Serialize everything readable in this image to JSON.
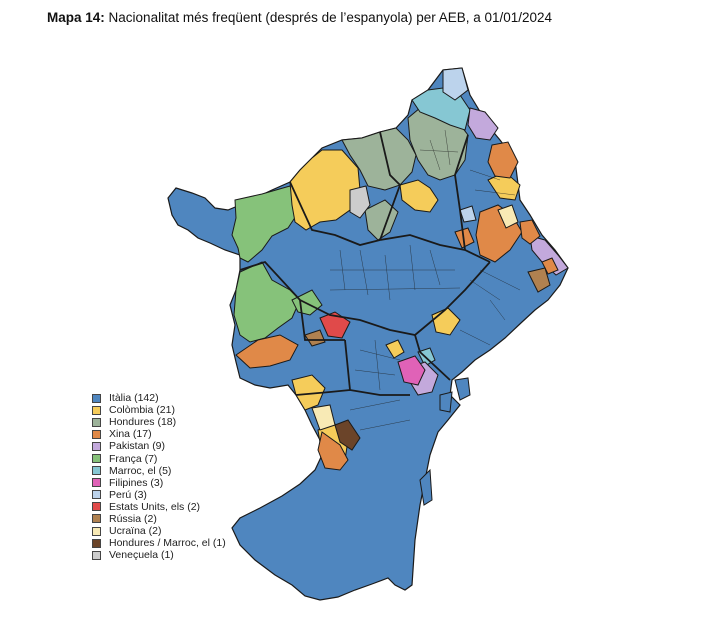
{
  "title": {
    "prefix": "Mapa 14:",
    "text": "Nacionalitat més freqüent (després de l’espanyola) per AEB, a 01/01/2024"
  },
  "colors": {
    "italia": "#4f86bf",
    "colombia": "#f5cc5a",
    "hondures": "#9db39a",
    "xina": "#e08948",
    "pakistan": "#c3a9dc",
    "franca": "#86c27a",
    "marroc": "#86c7d3",
    "filipines": "#e062b7",
    "peru": "#bcd3ec",
    "estats_units": "#e04a4a",
    "russia": "#b08150",
    "ucraina": "#f8eab5",
    "hondures_marroc": "#6b4429",
    "veneçuela": "#cccccc",
    "border": "#1a1a1a"
  },
  "legend": [
    {
      "label": "Itàlia (142)",
      "color": "#4f86bf"
    },
    {
      "label": "Colòmbia (21)",
      "color": "#f5cc5a"
    },
    {
      "label": "Hondures (18)",
      "color": "#9db39a"
    },
    {
      "label": "Xina (17)",
      "color": "#e08948"
    },
    {
      "label": "Pakistan (9)",
      "color": "#c3a9dc"
    },
    {
      "label": "França (7)",
      "color": "#86c27a"
    },
    {
      "label": "Marroc, el (5)",
      "color": "#86c7d3"
    },
    {
      "label": "Filipines (3)",
      "color": "#e062b7"
    },
    {
      "label": "Perú (3)",
      "color": "#bcd3ec"
    },
    {
      "label": "Estats Units, els (2)",
      "color": "#e04a4a"
    },
    {
      "label": "Rússia (2)",
      "color": "#b08150"
    },
    {
      "label": "Ucraïna (2)",
      "color": "#f8eab5"
    },
    {
      "label": "Hondures / Marroc, el (1)",
      "color": "#6b4429"
    },
    {
      "label": "Veneçuela (1)",
      "color": "#cccccc"
    }
  ]
}
